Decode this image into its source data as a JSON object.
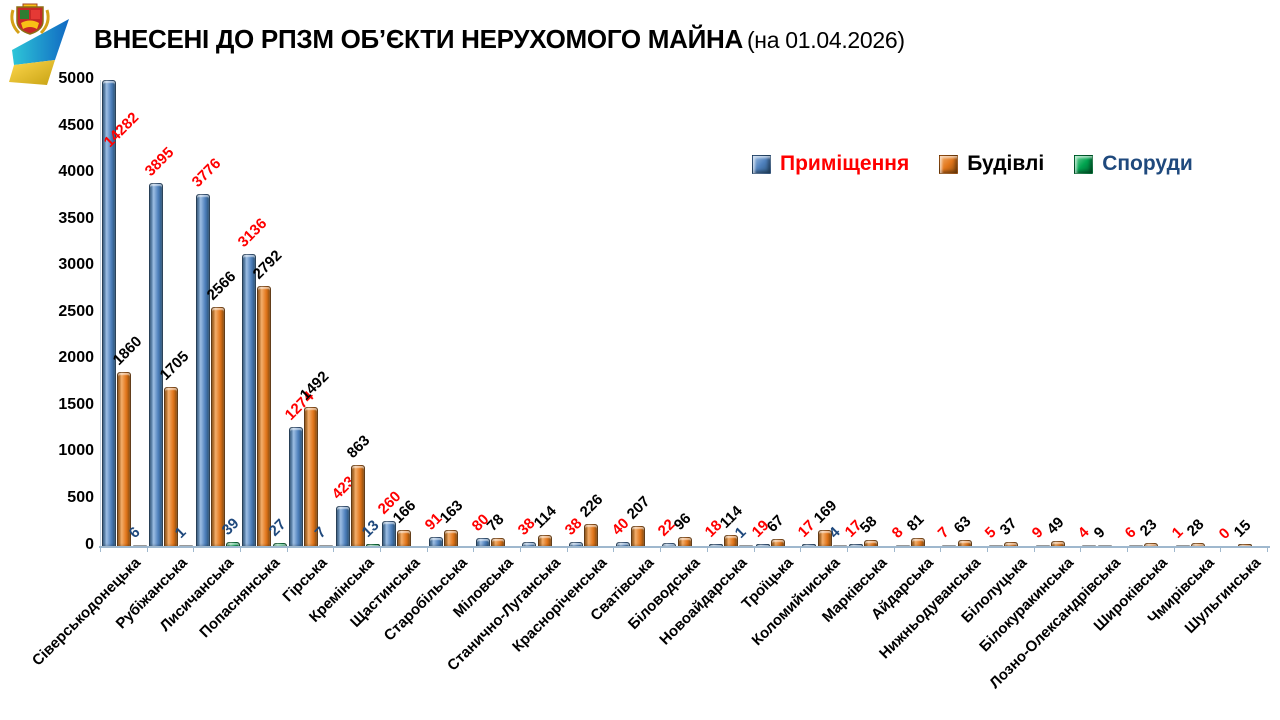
{
  "chart_data": {
    "type": "bar",
    "title": "ВНЕСЕНІ ДО РПЗМ ОБ’ЄКТИ НЕРУХОМОГО МАЙНА",
    "subtitle": "(на 01.04.2026)",
    "ylim": [
      0,
      5000
    ],
    "ytick_step": 500,
    "grid": false,
    "legend_position": "top-right",
    "categories": [
      "Сіверськодонецька",
      "Рубіжанська",
      "Лисичанська",
      "Попаснянська",
      "Гірська",
      "Кремінська",
      "Щастинська",
      "Старобільська",
      "Міловська",
      "Станично-Луганська",
      "Красноріченська",
      "Сватівська",
      "Біловодська",
      "Новоайдарська",
      "Троїцька",
      "Коломийчиська",
      "Марківська",
      "Айдарська",
      "Нижньодуванська",
      "Білолуцька",
      "Білокуракинська",
      "Лозно-Олександрівська",
      "Широківська",
      "Чмирівська",
      "Шульгинська"
    ],
    "series": [
      {
        "name": "Приміщення",
        "fill": "#4F81BD",
        "fill_light": "#9DBEE3",
        "fill_dark": "#2C567E",
        "label_color": "#FF0000",
        "values": [
          14282,
          3895,
          3776,
          3136,
          1274,
          423,
          260,
          91,
          80,
          38,
          38,
          40,
          22,
          18,
          19,
          17,
          17,
          8,
          7,
          5,
          9,
          4,
          6,
          1,
          0
        ]
      },
      {
        "name": "Будівлі",
        "fill": "#E2761B",
        "fill_light": "#F3AE6B",
        "fill_dark": "#8F4D0C",
        "label_color": "#000000",
        "values": [
          1860,
          1705,
          2566,
          2792,
          1492,
          863,
          166,
          163,
          78,
          114,
          226,
          207,
          96,
          114,
          67,
          169,
          58,
          81,
          63,
          37,
          49,
          9,
          23,
          28,
          15
        ]
      },
      {
        "name": "Споруди",
        "fill": "#00A550",
        "fill_light": "#6FCF97",
        "fill_dark": "#00622F",
        "label_color": "#1F497D",
        "values": [
          6,
          1,
          39,
          27,
          7,
          13,
          null,
          null,
          null,
          null,
          null,
          null,
          null,
          1,
          null,
          4,
          null,
          null,
          null,
          null,
          null,
          null,
          null,
          null,
          null
        ]
      }
    ]
  }
}
